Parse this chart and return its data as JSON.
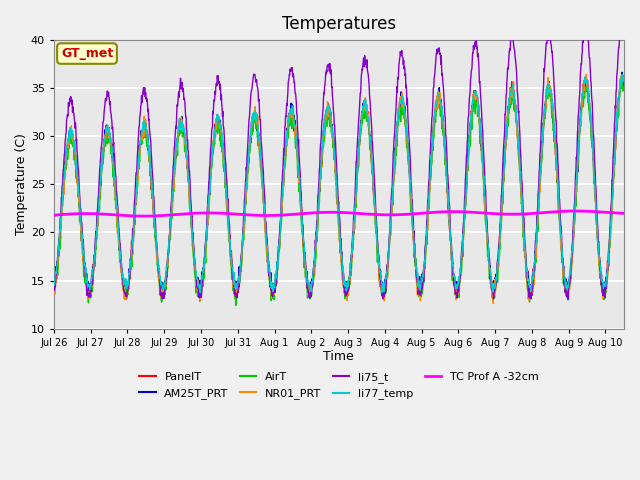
{
  "title": "Temperatures",
  "xlabel": "Time",
  "ylabel": "Temperature (C)",
  "ylim": [
    10,
    40
  ],
  "xlim_days": 15.5,
  "annotation_text": "GT_met",
  "series_colors": {
    "PanelT": "#ff0000",
    "AM25T_PRT": "#0000cc",
    "AirT": "#00cc00",
    "NR01_PRT": "#ff8800",
    "li75_t": "#8800cc",
    "li77_temp": "#00cccc",
    "TC Prof A -32cm": "#ff00ff"
  },
  "yticks": [
    10,
    15,
    20,
    25,
    30,
    35,
    40
  ],
  "xtick_labels": [
    "Jul 26",
    "Jul 27",
    "Jul 28",
    "Jul 29",
    "Jul 30",
    "Jul 31",
    "Aug 1",
    "Aug 2",
    "Aug 3",
    "Aug 4",
    "Aug 5",
    "Aug 6",
    "Aug 7",
    "Aug 8",
    "Aug 9",
    "Aug 10"
  ],
  "background_color": "#e8e8e8",
  "plot_bg_color": "#e8e8e8",
  "grid_color": "#ffffff",
  "num_days": 15,
  "start_day": 0
}
